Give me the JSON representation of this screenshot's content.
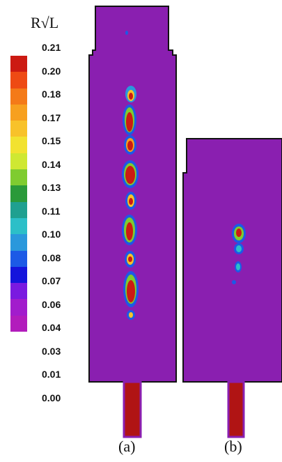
{
  "legend": {
    "title": "R√L",
    "ticks": [
      "0.21",
      "0.20",
      "0.18",
      "0.17",
      "0.15",
      "0.14",
      "0.13",
      "0.11",
      "0.10",
      "0.08",
      "0.07",
      "0.06",
      "0.04",
      "0.03",
      "0.01",
      "0.00"
    ],
    "colors": [
      "#cc1a12",
      "#ee4a14",
      "#f47a18",
      "#f7a01f",
      "#f8c22a",
      "#f2e230",
      "#cfe832",
      "#7fcc30",
      "#2a9a3a",
      "#1fa090",
      "#2cbfc8",
      "#2a98dc",
      "#1c5ae6",
      "#1414dc",
      "#7a1ae0",
      "#a21ccc",
      "#b21cbc"
    ]
  },
  "panels": [
    {
      "label": "(a)"
    },
    {
      "label": "(b)"
    }
  ],
  "palette": {
    "background": "#8a1fb0",
    "hot": "#b01414",
    "outline": "#111111"
  }
}
